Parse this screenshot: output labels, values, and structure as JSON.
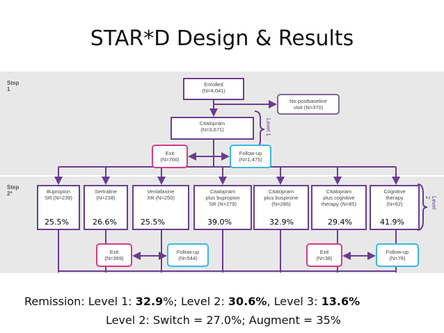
{
  "title": "STAR*D Design & Results",
  "steps": {
    "step1": "Step\n1",
    "step2": "Step\n2ª"
  },
  "levels": {
    "level1": "Level 1",
    "level2": "Level 2"
  },
  "nodes": {
    "enrolled": {
      "name": "Enrolled",
      "n": "(N=4,041)"
    },
    "no_post": {
      "name": "No postbaseline",
      "n": "visit (N=370)"
    },
    "citalopram": {
      "name": "Citalopram",
      "n": "(N=3,671)"
    },
    "exit1": {
      "name": "Exit",
      "n": "(N=766)"
    },
    "follow1": {
      "name": "Follow-up",
      "n": "(N=1,475)"
    },
    "exit2a": {
      "name": "Exit",
      "n": "(N=389)"
    },
    "follow2a": {
      "name": "Follow-up",
      "n": "(N=544)"
    },
    "exit2b": {
      "name": "Exit",
      "n": "(N=38)"
    },
    "follow2b": {
      "name": "Follow-up",
      "n": "(N=78)"
    }
  },
  "level2_treatments": [
    {
      "l1": "Bupropion",
      "l2": "SR (N=239)",
      "l3": "",
      "pct": "25.5%"
    },
    {
      "l1": "Sertraline",
      "l2": "(N=238)",
      "l3": "",
      "pct": "26.6%"
    },
    {
      "l1": "Venlafaxine",
      "l2": "XR (N=250)",
      "l3": "",
      "pct": "25.5%"
    },
    {
      "l1": "Citalopram",
      "l2": "plus bupropion",
      "l3": "SR (N=279)",
      "pct": "39.0%"
    },
    {
      "l1": "Citalopram",
      "l2": "plus buspirone",
      "l3": "(N=286)",
      "pct": "32.9%"
    },
    {
      "l1": "Citalopram",
      "l2": "plus cognitive",
      "l3": "therapy (N=85)",
      "pct": "29.4%"
    },
    {
      "l1": "Cognitive",
      "l2": "therapy",
      "l3": "(N=62)",
      "pct": "41.9%"
    }
  ],
  "summary": {
    "line1_prefix": "Remission: Level 1: ",
    "line1_l1": "32.9",
    "line1_mid1": "%; Level 2: ",
    "line1_l2": "30.6%",
    "line1_mid2": ", Level 3: ",
    "line1_l3": "13.6%",
    "line2": "Level 2: Switch = 27.0%; Augment = 35%"
  },
  "colors": {
    "arrow": "#6a3d8f",
    "exit_border": "#d63a86",
    "follow_border": "#38b8e0"
  }
}
